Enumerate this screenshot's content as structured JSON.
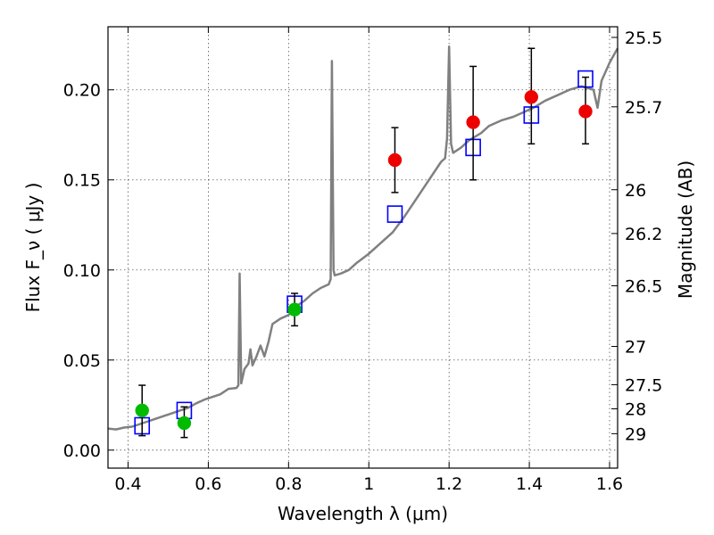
{
  "chart_data": {
    "type": "scatter",
    "xlabel": "Wavelength  λ (μm)",
    "ylabel": "Flux  F_ν  ( μJy )",
    "y2label": "Magnitude (AB)",
    "xlim": [
      0.35,
      1.62
    ],
    "ylim": [
      -0.01,
      0.235
    ],
    "x_ticks": [
      0.4,
      0.6,
      0.8,
      1.0,
      1.2,
      1.4,
      1.6
    ],
    "x_tick_labels": [
      "0.4",
      "0.6",
      "0.8",
      "1",
      "1.2",
      "1.4",
      "1.6"
    ],
    "y_ticks": [
      0.0,
      0.05,
      0.1,
      0.15,
      0.2
    ],
    "y_tick_labels": [
      "0.00",
      "0.05",
      "0.10",
      "0.15",
      "0.20"
    ],
    "mag_ticks": [
      25.5,
      25.7,
      26,
      26.2,
      26.5,
      27,
      27.5,
      28,
      29
    ],
    "mag_tick_labels": [
      "25.5",
      "25.7",
      "26",
      "26.2",
      "26.5",
      "27",
      "27.5",
      "28",
      "29"
    ],
    "grid": true,
    "colors": {
      "spectrum": "#808080",
      "model_marker": "#0000ff",
      "observed_green": "#00bb00",
      "observed_red": "#ee0000",
      "errorbar": "#000000"
    },
    "spectrum": [
      [
        0.35,
        0.012
      ],
      [
        0.37,
        0.0115
      ],
      [
        0.39,
        0.0125
      ],
      [
        0.41,
        0.013
      ],
      [
        0.43,
        0.0145
      ],
      [
        0.45,
        0.016
      ],
      [
        0.47,
        0.0175
      ],
      [
        0.49,
        0.019
      ],
      [
        0.51,
        0.0205
      ],
      [
        0.53,
        0.022
      ],
      [
        0.55,
        0.0235
      ],
      [
        0.57,
        0.026
      ],
      [
        0.59,
        0.028
      ],
      [
        0.61,
        0.0295
      ],
      [
        0.63,
        0.031
      ],
      [
        0.65,
        0.034
      ],
      [
        0.67,
        0.0345
      ],
      [
        0.675,
        0.036
      ],
      [
        0.678,
        0.098
      ],
      [
        0.682,
        0.037
      ],
      [
        0.69,
        0.045
      ],
      [
        0.7,
        0.048
      ],
      [
        0.705,
        0.056
      ],
      [
        0.71,
        0.047
      ],
      [
        0.72,
        0.052
      ],
      [
        0.73,
        0.058
      ],
      [
        0.74,
        0.052
      ],
      [
        0.75,
        0.06
      ],
      [
        0.76,
        0.07
      ],
      [
        0.78,
        0.073
      ],
      [
        0.8,
        0.075
      ],
      [
        0.82,
        0.08
      ],
      [
        0.84,
        0.083
      ],
      [
        0.86,
        0.087
      ],
      [
        0.88,
        0.09
      ],
      [
        0.9,
        0.092
      ],
      [
        0.905,
        0.095
      ],
      [
        0.908,
        0.216
      ],
      [
        0.912,
        0.1
      ],
      [
        0.915,
        0.097
      ],
      [
        0.93,
        0.098
      ],
      [
        0.95,
        0.1
      ],
      [
        0.97,
        0.104
      ],
      [
        1.0,
        0.109
      ],
      [
        1.03,
        0.115
      ],
      [
        1.06,
        0.121
      ],
      [
        1.09,
        0.13
      ],
      [
        1.12,
        0.14
      ],
      [
        1.15,
        0.15
      ],
      [
        1.18,
        0.16
      ],
      [
        1.19,
        0.162
      ],
      [
        1.195,
        0.173
      ],
      [
        1.2,
        0.224
      ],
      [
        1.205,
        0.17
      ],
      [
        1.21,
        0.165
      ],
      [
        1.23,
        0.168
      ],
      [
        1.25,
        0.172
      ],
      [
        1.28,
        0.176
      ],
      [
        1.3,
        0.18
      ],
      [
        1.33,
        0.183
      ],
      [
        1.36,
        0.185
      ],
      [
        1.38,
        0.187
      ],
      [
        1.41,
        0.19
      ],
      [
        1.44,
        0.194
      ],
      [
        1.47,
        0.197
      ],
      [
        1.5,
        0.2
      ],
      [
        1.53,
        0.202
      ],
      [
        1.56,
        0.2
      ],
      [
        1.57,
        0.19
      ],
      [
        1.58,
        0.205
      ],
      [
        1.6,
        0.215
      ],
      [
        1.62,
        0.223
      ]
    ],
    "model_points": [
      {
        "x": 0.435,
        "y": 0.0135
      },
      {
        "x": 0.54,
        "y": 0.022
      },
      {
        "x": 0.815,
        "y": 0.081
      },
      {
        "x": 1.065,
        "y": 0.131
      },
      {
        "x": 1.26,
        "y": 0.168
      },
      {
        "x": 1.405,
        "y": 0.186
      },
      {
        "x": 1.54,
        "y": 0.206
      }
    ],
    "observed_points": [
      {
        "x": 0.435,
        "y": 0.022,
        "err_low": 0.008,
        "err_high": 0.036,
        "color": "green"
      },
      {
        "x": 0.54,
        "y": 0.015,
        "err_low": 0.007,
        "err_high": 0.024,
        "color": "green"
      },
      {
        "x": 0.815,
        "y": 0.078,
        "err_low": 0.069,
        "err_high": 0.087,
        "color": "green"
      },
      {
        "x": 1.065,
        "y": 0.161,
        "err_low": 0.143,
        "err_high": 0.179,
        "color": "red"
      },
      {
        "x": 1.26,
        "y": 0.182,
        "err_low": 0.15,
        "err_high": 0.213,
        "color": "red"
      },
      {
        "x": 1.405,
        "y": 0.196,
        "err_low": 0.17,
        "err_high": 0.223,
        "color": "red"
      },
      {
        "x": 1.54,
        "y": 0.188,
        "err_low": 0.17,
        "err_high": 0.207,
        "color": "red"
      }
    ]
  }
}
